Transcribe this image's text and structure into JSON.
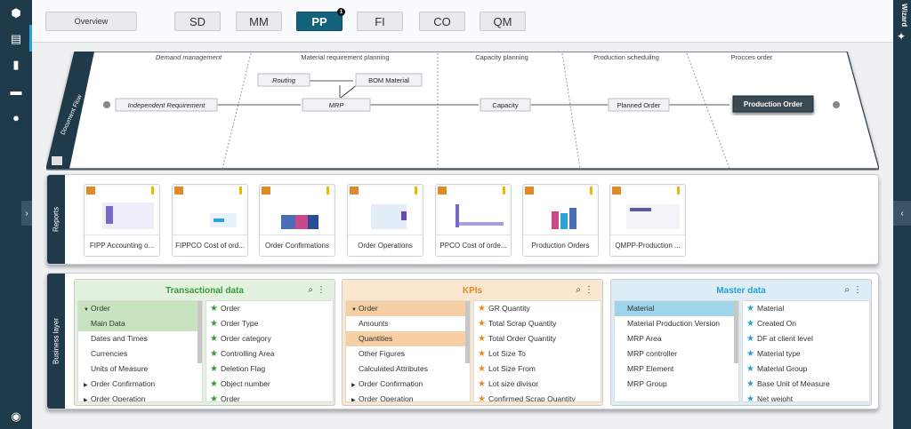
{
  "sidebar": {
    "icons": [
      "box-icon",
      "book-icon",
      "chart-icon",
      "folder-icon",
      "cloud-icon",
      "user-icon"
    ]
  },
  "topnav": {
    "overview": "Overview",
    "modules": [
      "SD",
      "MM",
      "PP",
      "FI",
      "CO",
      "QM"
    ],
    "selected": "PP",
    "pp_badge": "1"
  },
  "wizard": {
    "label": "Wizard"
  },
  "docflow": {
    "side_label": "Document Flow",
    "columns": [
      "Demand management",
      "Material requirement planning",
      "Capacity planning",
      "Production scheduling",
      "Procces order"
    ],
    "nodes": {
      "independent": "Independent Requirement",
      "routing": "Routing",
      "bom": "BOM Material",
      "mrp": "MRP",
      "capacity": "Capacity",
      "planned": "Planned Order",
      "production": "Production Order"
    }
  },
  "reports": {
    "label": "Reports",
    "items": [
      "FIPP Accounting o...",
      "FIPPCO Cost of ord...",
      "Order Confirmations",
      "Order Operations",
      "PPCO Cost of orde...",
      "Production Orders",
      "QMPP-Production ..."
    ]
  },
  "business": {
    "label": "Business layer",
    "transactional": {
      "title": "Transactional data",
      "color": "#3a9a3a",
      "left": [
        {
          "t": "Order",
          "type": "open"
        },
        {
          "t": "Main Data",
          "type": "sel"
        },
        {
          "t": "Dates and Times",
          "type": "sub"
        },
        {
          "t": "Currencies",
          "type": "sub"
        },
        {
          "t": "Units of Measure",
          "type": "sub"
        },
        {
          "t": "Order Confirmation",
          "type": "closed"
        },
        {
          "t": "Order Operation",
          "type": "closed"
        }
      ],
      "right": [
        "Order",
        "Order Type",
        "Order category",
        "Controlling Area",
        "Deletion Flag",
        "Object number",
        "Order"
      ]
    },
    "kpis": {
      "title": "KPIs",
      "color": "#e8891c",
      "left": [
        {
          "t": "Order",
          "type": "open"
        },
        {
          "t": "Amounts",
          "type": "sub"
        },
        {
          "t": "Quantities",
          "type": "sel"
        },
        {
          "t": "Other Figures",
          "type": "sub"
        },
        {
          "t": "Calculated Attributes",
          "type": "sub"
        },
        {
          "t": "Order Confirmation",
          "type": "closed"
        },
        {
          "t": "Order Operation",
          "type": "closed"
        }
      ],
      "right": [
        "GR Quantity",
        "Total Scrap Quantity",
        "Total Order Quantity",
        "Lot Size To",
        "Lot Size From",
        "Lot size divisor",
        "Confirmed Scrap Quantity"
      ]
    },
    "master": {
      "title": "Master data",
      "color": "#2a9fd0",
      "left": [
        {
          "t": "Material",
          "type": "sel"
        },
        {
          "t": "Material Production Version",
          "type": "sub"
        },
        {
          "t": "MRP Area",
          "type": "sub"
        },
        {
          "t": "MRP controller",
          "type": "sub"
        },
        {
          "t": "MRP Element",
          "type": "sub"
        },
        {
          "t": "MRP Group",
          "type": "sub"
        }
      ],
      "right": [
        "Material",
        "Created On",
        "DF at client level",
        "Material type",
        "Material Group",
        "Base Unit of Measure",
        "Net weight"
      ]
    }
  },
  "colors": {
    "sidebar": "#1f3a4a",
    "selected_module": "#12627c",
    "green_bg": "#e3f1df",
    "orange_bg": "#fbe6d0",
    "blue_bg": "#dcedf5"
  }
}
